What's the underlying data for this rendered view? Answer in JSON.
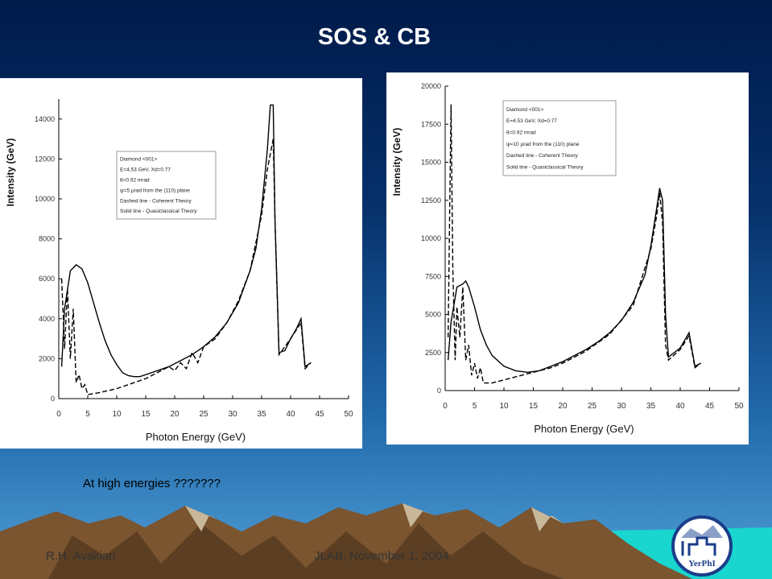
{
  "slide": {
    "title": "SOS & CB",
    "note": "At high energies ???????",
    "footer_left": "R.H. Avakian",
    "footer_center": "JLAB, November 1, 2004",
    "logo_text": "YerPhI"
  },
  "chart_data": [
    {
      "type": "line",
      "xlabel": "Photon Energy (GeV)",
      "ylabel": "Intensity (GeV)",
      "xlim": [
        0,
        50
      ],
      "ylim": [
        0,
        15000
      ],
      "xticks": [
        0,
        5,
        10,
        15,
        20,
        25,
        30,
        35,
        40,
        45,
        50
      ],
      "yticks": [
        0,
        2000,
        4000,
        6000,
        8000,
        10000,
        12000,
        14000
      ],
      "annotations": [
        "Diamond <001>",
        "E=4.53 GeV, Xd=0.77",
        "θ=0.92 mrad",
        "ψ=5 μrad from the (110) plane"
      ],
      "series": [
        {
          "name": "Dashed line - Coherent Theory",
          "color": "#000000",
          "dashed": true,
          "x": [
            0.5,
            1,
            1.5,
            2,
            2.5,
            3,
            3.5,
            4,
            4.5,
            5,
            7,
            10,
            13,
            15,
            17,
            19,
            20,
            21,
            22,
            23,
            24,
            25,
            27,
            29,
            31,
            33,
            35,
            36,
            37,
            37.3,
            38,
            40,
            41.8,
            42.5,
            43.5
          ],
          "values": [
            6000,
            2500,
            5500,
            2000,
            4500,
            800,
            1200,
            500,
            700,
            200,
            300,
            500,
            800,
            1000,
            1300,
            1600,
            1400,
            1800,
            1500,
            2300,
            1800,
            2600,
            3000,
            3800,
            4900,
            6400,
            9200,
            11500,
            13000,
            9000,
            2200,
            3000,
            3800,
            1500,
            1800
          ]
        },
        {
          "name": "Solid line - Quasiclassical Theory",
          "color": "#000000",
          "dashed": false,
          "x": [
            0.5,
            1,
            2,
            3,
            4,
            5,
            6,
            7,
            8,
            9,
            10,
            11,
            12,
            13,
            14,
            15,
            17,
            19,
            21,
            23,
            25,
            27,
            29,
            31,
            33,
            34,
            35,
            36,
            36.5,
            37,
            37.3,
            38,
            39,
            40,
            41,
            41.8,
            42.5,
            43.5
          ],
          "values": [
            1600,
            4500,
            6400,
            6700,
            6500,
            5800,
            4800,
            3800,
            2900,
            2200,
            1700,
            1300,
            1150,
            1100,
            1100,
            1200,
            1400,
            1600,
            1900,
            2200,
            2600,
            3100,
            3800,
            4800,
            6400,
            7500,
            9500,
            12500,
            14700,
            14700,
            9000,
            2300,
            2400,
            3000,
            3500,
            4000,
            1600,
            1800
          ]
        }
      ]
    },
    {
      "type": "line",
      "xlabel": "Photon Energy (GeV)",
      "ylabel": "Intensity (GeV)",
      "xlim": [
        0,
        50
      ],
      "ylim": [
        0,
        20000
      ],
      "xticks": [
        0,
        5,
        10,
        15,
        20,
        25,
        30,
        35,
        40,
        45,
        50
      ],
      "yticks": [
        0,
        2500,
        5000,
        7500,
        10000,
        12500,
        15000,
        17500,
        20000
      ],
      "annotations": [
        "Diamond <001>",
        "E=4.53 GeV, Xd=0.77",
        "θ=0.92 mrad",
        "ψ=10 μrad from the (110) plane"
      ],
      "series": [
        {
          "name": "Dashed line - Coherent Theory",
          "color": "#000000",
          "dashed": true,
          "x": [
            0.5,
            1,
            1.3,
            1.7,
            2,
            2.5,
            3,
            3.5,
            4,
            4.5,
            5,
            5.5,
            6,
            6.5,
            8,
            10,
            12,
            14,
            16,
            18,
            20,
            24,
            28,
            32,
            35,
            36,
            36.5,
            37,
            37.5,
            38,
            40,
            41.5,
            42.5,
            43.5
          ],
          "values": [
            3500,
            18800,
            8000,
            2000,
            5500,
            3500,
            6800,
            2000,
            3000,
            1000,
            1800,
            800,
            1500,
            500,
            500,
            700,
            900,
            1100,
            1300,
            1500,
            1800,
            2600,
            3700,
            5600,
            9300,
            11500,
            13000,
            11000,
            3000,
            2000,
            2700,
            3600,
            1500,
            1800
          ]
        },
        {
          "name": "Solid line - Quasiclassical Theory",
          "color": "#000000",
          "dashed": false,
          "x": [
            0.5,
            1,
            2,
            3,
            3.5,
            4,
            5,
            6,
            7,
            8,
            10,
            12,
            14,
            16,
            18,
            20,
            22,
            24,
            26,
            28,
            30,
            32,
            34,
            35,
            36,
            36.5,
            37,
            37.5,
            38,
            40,
            41.5,
            42.5,
            43.5
          ],
          "values": [
            2000,
            4500,
            6800,
            7000,
            7200,
            6800,
            5500,
            4000,
            3000,
            2300,
            1600,
            1300,
            1200,
            1300,
            1600,
            1900,
            2300,
            2700,
            3200,
            3800,
            4600,
            5800,
            7600,
            9500,
            12000,
            13300,
            12500,
            5000,
            2200,
            2800,
            3800,
            1600,
            1800
          ]
        }
      ]
    }
  ]
}
